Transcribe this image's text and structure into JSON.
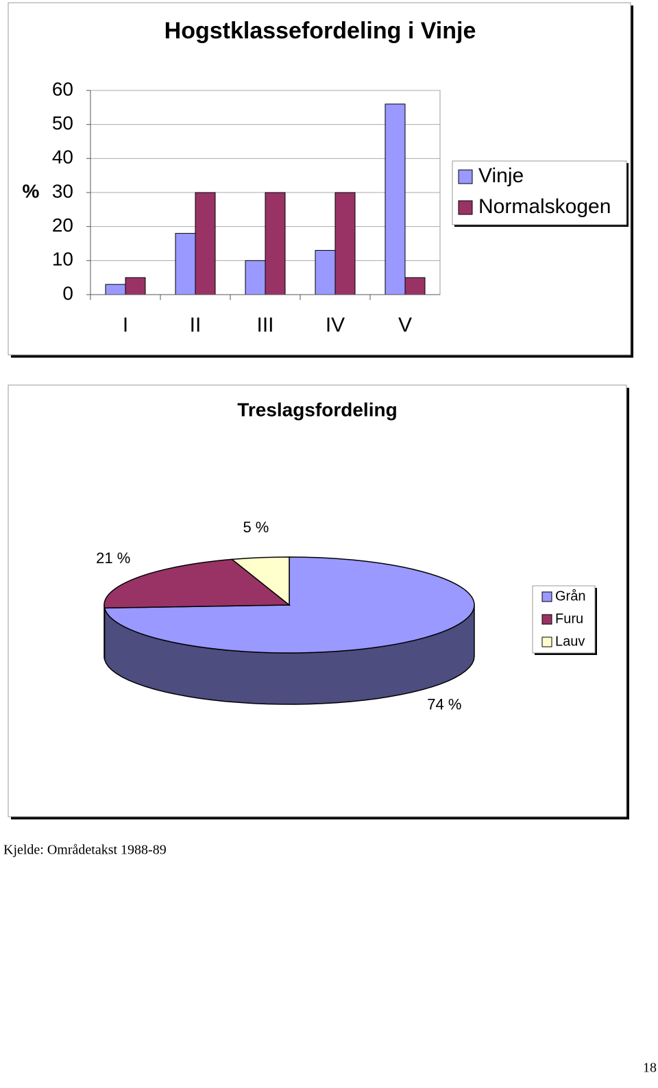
{
  "chart_data": [
    {
      "type": "bar",
      "title": "Hogstklassefordeling i Vinje",
      "y_label": "%",
      "categories": [
        "I",
        "II",
        "III",
        "IV",
        "V"
      ],
      "series": [
        {
          "name": "Vinje",
          "color": "#9999ff",
          "values": [
            3,
            18,
            10,
            13,
            56
          ]
        },
        {
          "name": "Normalskogen",
          "color": "#993366",
          "values": [
            5,
            30,
            30,
            30,
            5
          ]
        }
      ],
      "ylim": [
        0,
        60
      ],
      "yticks": [
        0,
        10,
        20,
        30,
        40,
        50,
        60
      ],
      "grid": true,
      "legend": "right"
    },
    {
      "type": "pie",
      "title": "Treslagsfordeling",
      "categories": [
        "Grån",
        "Furu",
        "Lauv"
      ],
      "values": [
        74,
        21,
        5
      ],
      "value_labels": [
        "74 %",
        "21 %",
        "5 %"
      ],
      "colors": [
        "#9999ff",
        "#993366",
        "#ffffcc"
      ],
      "legend": "right"
    }
  ],
  "source": "Kjelde: Områdetakst 1988-89",
  "page_number": "18"
}
